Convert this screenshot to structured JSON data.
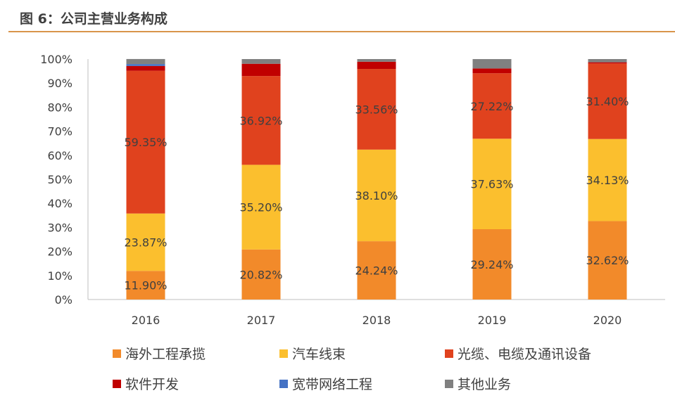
{
  "title": "图 6：公司主营业务构成",
  "chart_data": {
    "type": "bar",
    "stacked": true,
    "categories": [
      "2016",
      "2017",
      "2018",
      "2019",
      "2020"
    ],
    "ylim": [
      0,
      100
    ],
    "yticks": [
      "0%",
      "10%",
      "20%",
      "30%",
      "40%",
      "50%",
      "60%",
      "70%",
      "80%",
      "90%",
      "100%"
    ],
    "grid": false,
    "legend_position": "bottom",
    "series": [
      {
        "name": "海外工程承揽",
        "color": "#f28a2a",
        "values": [
          11.9,
          20.82,
          24.24,
          29.24,
          32.62
        ],
        "labels": [
          "11.90%",
          "20.82%",
          "24.24%",
          "29.24%",
          "32.62%"
        ]
      },
      {
        "name": "汽车线束",
        "color": "#fbbf2e",
        "values": [
          23.87,
          35.2,
          38.1,
          37.63,
          34.13
        ],
        "labels": [
          "23.87%",
          "35.20%",
          "38.10%",
          "37.63%",
          "34.13%"
        ]
      },
      {
        "name": "光缆、电缆及通讯设备",
        "color": "#e0421e",
        "values": [
          59.35,
          36.92,
          33.56,
          27.22,
          31.4
        ],
        "labels": [
          "59.35%",
          "36.92%",
          "33.56%",
          "27.22%",
          "31.40%"
        ]
      },
      {
        "name": "软件开发",
        "color": "#c00000",
        "values": [
          2.0,
          5.1,
          3.0,
          2.0,
          0.5
        ]
      },
      {
        "name": "宽带网络工程",
        "color": "#4472c4",
        "values": [
          0.8,
          0,
          0,
          0,
          0
        ]
      },
      {
        "name": "其他业务",
        "color": "#808080",
        "values": [
          2.1,
          1.96,
          1.1,
          3.9,
          1.35
        ]
      }
    ]
  }
}
